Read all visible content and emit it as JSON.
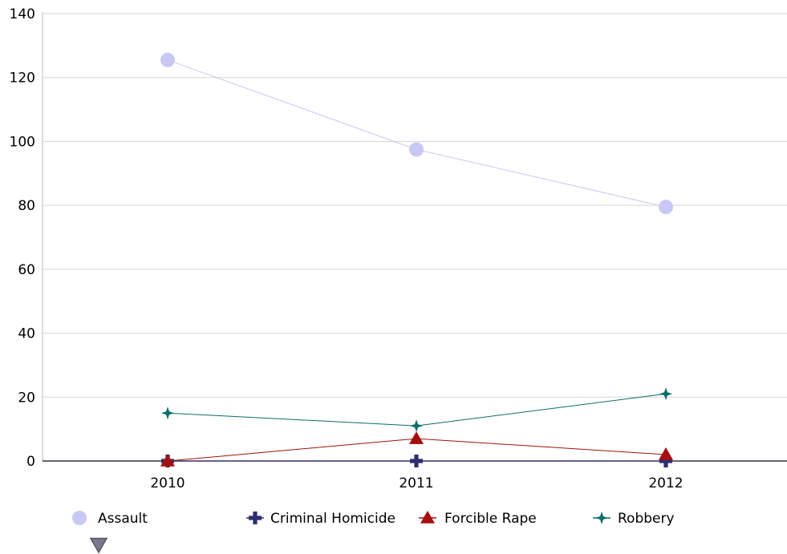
{
  "chart_data": {
    "type": "line",
    "categories": [
      "2010",
      "2011",
      "2012"
    ],
    "ylim": [
      0,
      140
    ],
    "yticks": [
      0,
      20,
      40,
      60,
      80,
      100,
      120,
      140
    ],
    "grid": true,
    "legend_position": "bottom",
    "series": [
      {
        "name": "Assault",
        "values": [
          125.5,
          97.5,
          79.5
        ],
        "color": "#c8c8f5",
        "marker": "circle"
      },
      {
        "name": "Criminal Homicide",
        "values": [
          0,
          0,
          0
        ],
        "color": "#2e2e6e",
        "marker": "plus"
      },
      {
        "name": "Forcible Rape",
        "values": [
          0,
          7,
          2
        ],
        "color": "#a50f0f",
        "marker": "triangle"
      },
      {
        "name": "Robbery",
        "values": [
          15,
          11,
          21
        ],
        "color": "#0b6e6a",
        "marker": "star"
      }
    ],
    "extra_legend_marker": {
      "marker": "triangle-down",
      "color": "#7a7a8c"
    }
  }
}
